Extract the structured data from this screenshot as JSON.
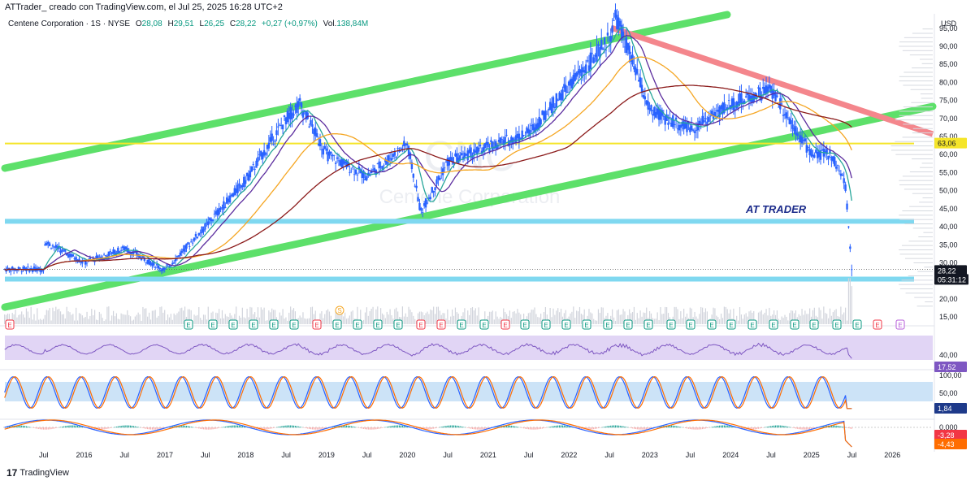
{
  "header": {
    "text": "ATTrader_ creado con TradingView.com, el Jul 25, 2025 16:28 UTC+2"
  },
  "legend": {
    "symbol": "Centene Corporation · 1S · NYSE",
    "open_label": "O",
    "open": "28,08",
    "high_label": "H",
    "high": "29,51",
    "low_label": "L",
    "low": "26,25",
    "close_label": "C",
    "close": "28,22",
    "change": "+0,27 (+0,97%)",
    "volume_label": "Vol.",
    "volume": "138,84M"
  },
  "watermark": {
    "ticker": "CNC",
    "name": "Centene Corporation",
    "brand_logo_text": "AT TRADER"
  },
  "footer": {
    "brand": "TradingView",
    "logo": "17"
  },
  "colors": {
    "candle": "#2962ff",
    "channel_green": "#5de06a",
    "resistance_red": "#f4868c",
    "support_blue": "#7fd8f0",
    "yellow_line": "#f5e52a",
    "ma_teal": "#26a69a",
    "ma_purple": "#5b2c9e",
    "ma_orange": "#f5a623",
    "ma_darkred": "#8b1a1a",
    "rsi_line": "#7e57c2",
    "rsi_band": "#e1d5f5",
    "stoch_band": "#cce3f7",
    "stoch_k": "#2962ff",
    "stoch_d": "#ff6d00",
    "macd": "#2962ff",
    "signal": "#ff6d00",
    "label_bg": "#131722"
  },
  "price_axis": {
    "currency": "USD",
    "ticks": [
      "95,00",
      "90,00",
      "85,00",
      "80,00",
      "75,00",
      "70,00",
      "65,00",
      "60,00",
      "55,00",
      "50,00",
      "45,00",
      "40,00",
      "35,00",
      "30,00",
      "25,00",
      "20,00",
      "15,00"
    ],
    "last_price": "28,22",
    "countdown": "05:31:12",
    "level_label": "63,06"
  },
  "time_axis": {
    "labels": [
      "Jul",
      "2016",
      "Jul",
      "2017",
      "Jul",
      "2018",
      "Jul",
      "2019",
      "Jul",
      "2020",
      "Jul",
      "2021",
      "Jul",
      "2022",
      "Jul",
      "2023",
      "Jul",
      "2024",
      "Jul",
      "2025",
      "Jul",
      "2026"
    ]
  },
  "rsi": {
    "tick": "40,00",
    "value": "17,52"
  },
  "stoch": {
    "ticks": [
      "100,00",
      "50,00"
    ],
    "value": "1,84"
  },
  "macd": {
    "tick": "0,000",
    "macd_value": "-3,28",
    "signal_value": "-4,43"
  },
  "markers": {
    "earnings_label": "E",
    "split_label": "S"
  },
  "chart_data": {
    "type": "line",
    "title": "Centene Corporation · 1S · NYSE",
    "x": [
      "2015-07",
      "2016-01",
      "2016-07",
      "2017-01",
      "2017-07",
      "2018-01",
      "2018-07",
      "2018-09",
      "2019-01",
      "2019-07",
      "2020-01",
      "2020-03",
      "2020-07",
      "2021-01",
      "2021-07",
      "2022-01",
      "2022-07",
      "2022-08",
      "2023-01",
      "2023-07",
      "2024-01",
      "2024-07",
      "2025-01",
      "2025-04",
      "2025-06",
      "2025-07"
    ],
    "series": [
      {
        "values": [
          36,
          30,
          34,
          28,
          40,
          53,
          70,
          74,
          60,
          54,
          63,
          44,
          58,
          62,
          66,
          79,
          92,
          98,
          72,
          67,
          74,
          78,
          60,
          60,
          52,
          28.22
        ]
      }
    ],
    "ylim": [
      13,
      99
    ],
    "xlim": [
      "2015-01",
      "2026-07"
    ],
    "levels": [
      63.06,
      41.5,
      25.5
    ],
    "ylabel": "USD"
  }
}
